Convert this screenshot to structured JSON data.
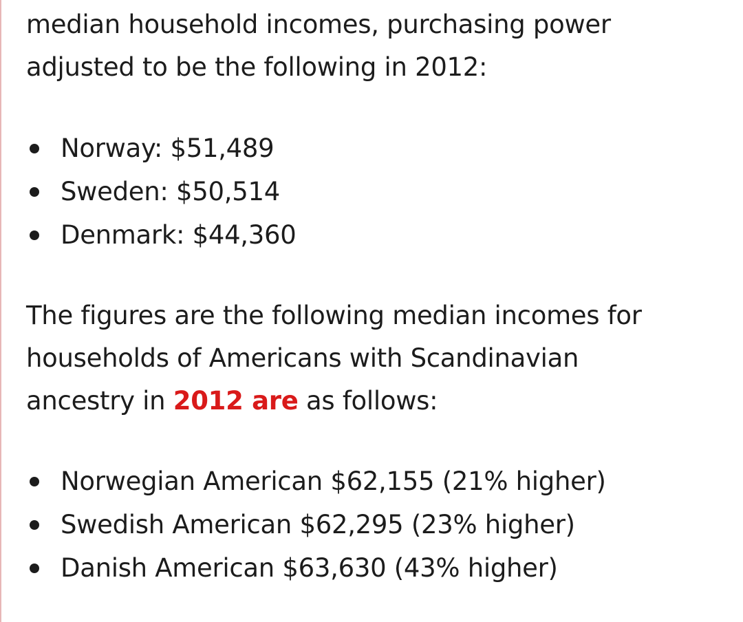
{
  "intro": {
    "line1": "median household incomes, purchasing power",
    "line2": "adjusted to be the following in 2012:"
  },
  "country_incomes": [
    "Norway: $51,489",
    "Sweden: $50,514",
    "Denmark: $44,360"
  ],
  "figures_paragraph": {
    "line1": "The figures are the following median incomes for",
    "line2": "households of Americans with Scandinavian",
    "line3_before": "ancestry in ",
    "line3_highlight": "2012 are",
    "line3_after": " as follows:"
  },
  "american_incomes": [
    "Norwegian American $62,155 (21% higher)",
    "Swedish American $62,295 (23% higher)",
    "Danish American $63,630 (43% higher)"
  ],
  "colors": {
    "text": "#1c1c1c",
    "highlight": "#d91a1a",
    "left_rule": "#e7b7b7",
    "background": "#ffffff"
  }
}
